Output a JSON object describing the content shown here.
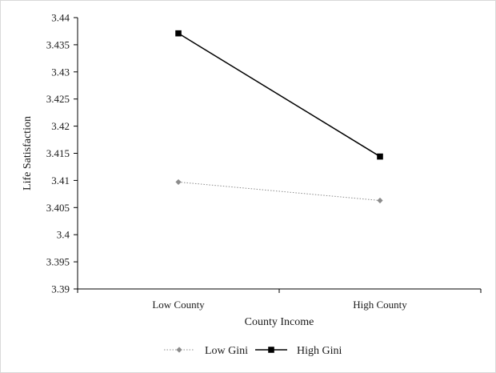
{
  "chart_data": {
    "type": "line",
    "title": "",
    "xlabel": "County Income",
    "ylabel": "Life Satisfaction",
    "categories": [
      "Low County",
      "High County"
    ],
    "ylim": [
      3.39,
      3.44
    ],
    "yticks": [
      "3.39",
      "3.395",
      "3.4",
      "3.405",
      "3.41",
      "3.415",
      "3.42",
      "3.425",
      "3.43",
      "3.435",
      "3.44"
    ],
    "grid": false,
    "legend_position": "bottom",
    "series": [
      {
        "name": "Low Gini",
        "values": [
          3.4097,
          3.4063
        ],
        "color": "#8c8c8c",
        "line_style": "dotted",
        "marker": "diamond"
      },
      {
        "name": "High Gini",
        "values": [
          3.4371,
          3.4144
        ],
        "color": "#000000",
        "line_style": "solid",
        "marker": "square"
      }
    ]
  }
}
